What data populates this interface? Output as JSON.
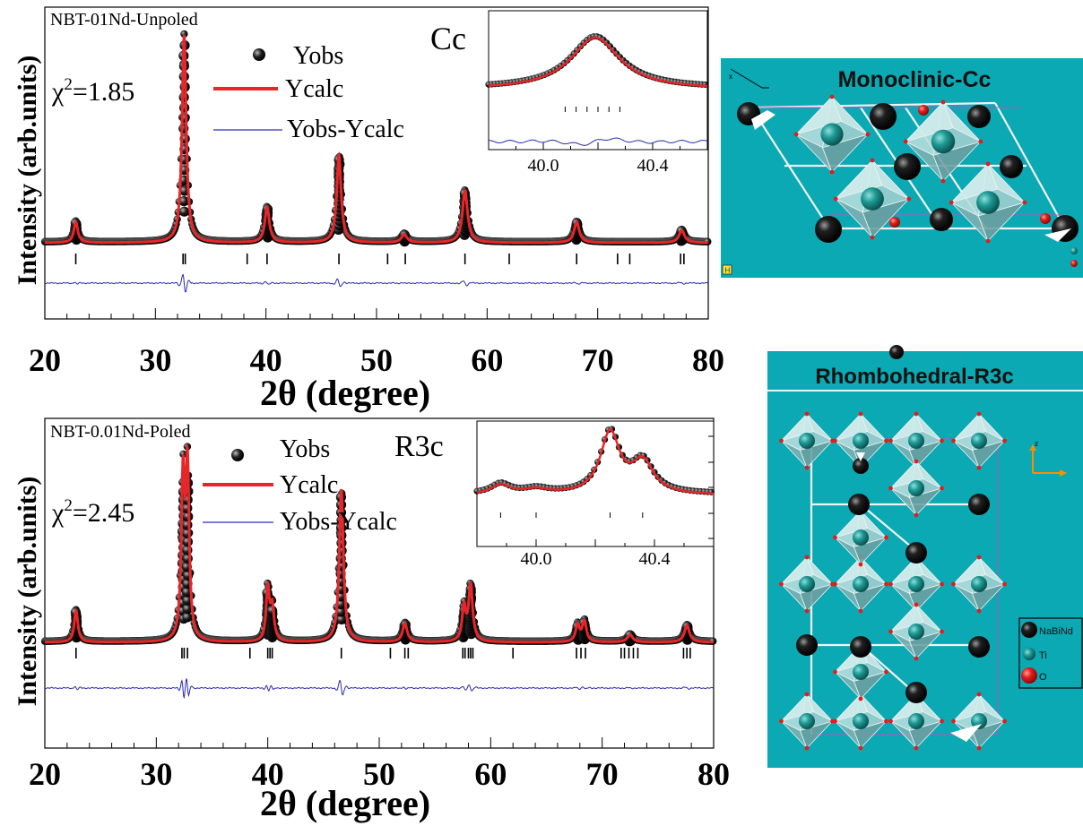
{
  "chart_data": [
    {
      "type": "line",
      "panel": "top",
      "sample_label": "NBT-01Nd-Unpoled",
      "space_group": "Cc",
      "chi2_prefix": "χ",
      "chi2_exp": "2",
      "chi2_value": "=1.85",
      "xlabel": "2θ (degree)",
      "ylabel": "Intensity (arb.units)",
      "xlim": [
        20,
        80
      ],
      "xticks": [
        20,
        30,
        40,
        50,
        60,
        70,
        80
      ],
      "legend_position": "top-center",
      "legend": {
        "obs": "Yobs",
        "calc": "Ycalc",
        "diff": "Yobs-Ycalc"
      },
      "colors": {
        "obs": "#000000",
        "calc": "#e8262a",
        "diff": "#2b2bb0",
        "bragg": "#000000"
      },
      "peaks": [
        {
          "x": 22.8,
          "h": 0.1,
          "w": 0.22
        },
        {
          "x": 32.6,
          "h": 1.0,
          "w": 0.22
        },
        {
          "x": 40.1,
          "h": 0.17,
          "w": 0.25
        },
        {
          "x": 46.6,
          "h": 0.42,
          "w": 0.24
        },
        {
          "x": 52.5,
          "h": 0.04,
          "w": 0.3
        },
        {
          "x": 58.0,
          "h": 0.25,
          "w": 0.28
        },
        {
          "x": 68.1,
          "h": 0.1,
          "w": 0.28
        },
        {
          "x": 77.6,
          "h": 0.06,
          "w": 0.3
        }
      ],
      "bragg_positions": [
        22.8,
        32.5,
        32.7,
        38.3,
        40.1,
        46.6,
        51.0,
        52.6,
        58.0,
        62.0,
        68.1,
        71.8,
        72.9,
        77.5,
        77.8
      ],
      "inset": {
        "xlim": [
          39.8,
          40.6
        ],
        "xticks": [
          40.0,
          40.4
        ],
        "peaks": [
          {
            "x": 40.19,
            "h": 1.0,
            "w": 0.11
          }
        ],
        "bragg_positions": [
          40.08,
          40.12,
          40.16,
          40.2,
          40.24,
          40.28
        ]
      }
    },
    {
      "type": "line",
      "panel": "bottom",
      "sample_label": "NBT-0.01Nd-Poled",
      "space_group": "R3c",
      "chi2_prefix": "χ",
      "chi2_exp": "2",
      "chi2_value": "=2.45",
      "xlabel": "2θ (degree)",
      "ylabel": "Intensity (arb.units)",
      "xlim": [
        20,
        80
      ],
      "xticks": [
        20,
        30,
        40,
        50,
        60,
        70,
        80
      ],
      "legend_position": "top-center",
      "legend": {
        "obs": "Yobs",
        "calc": "Ycalc",
        "diff": "Yobs-Ycalc"
      },
      "colors": {
        "obs": "#000000",
        "calc": "#e8262a",
        "diff": "#2b2bb0",
        "bragg": "#000000"
      },
      "peaks": [
        {
          "x": 22.8,
          "h": 0.17,
          "w": 0.2
        },
        {
          "x": 32.4,
          "h": 0.85,
          "w": 0.18
        },
        {
          "x": 32.8,
          "h": 0.9,
          "w": 0.18
        },
        {
          "x": 40.0,
          "h": 0.28,
          "w": 0.18
        },
        {
          "x": 40.4,
          "h": 0.18,
          "w": 0.2
        },
        {
          "x": 46.6,
          "h": 0.82,
          "w": 0.22
        },
        {
          "x": 52.3,
          "h": 0.1,
          "w": 0.25
        },
        {
          "x": 57.6,
          "h": 0.18,
          "w": 0.2
        },
        {
          "x": 58.2,
          "h": 0.3,
          "w": 0.22
        },
        {
          "x": 67.8,
          "h": 0.09,
          "w": 0.22
        },
        {
          "x": 68.4,
          "h": 0.11,
          "w": 0.22
        },
        {
          "x": 72.5,
          "h": 0.04,
          "w": 0.3
        },
        {
          "x": 77.6,
          "h": 0.09,
          "w": 0.28
        }
      ],
      "bragg_positions": [
        22.8,
        32.3,
        32.5,
        32.8,
        38.4,
        40.0,
        40.2,
        40.4,
        46.6,
        51.0,
        52.3,
        52.6,
        57.5,
        57.7,
        58.0,
        58.2,
        58.4,
        62.0,
        67.7,
        68.1,
        68.5,
        71.7,
        72.0,
        72.4,
        72.8,
        73.2,
        77.3,
        77.6,
        77.9
      ],
      "inset": {
        "xlim": [
          39.8,
          40.6
        ],
        "xticks": [
          40.0,
          40.4
        ],
        "peaks": [
          {
            "x": 39.88,
            "h": 0.1,
            "w": 0.04
          },
          {
            "x": 40.0,
            "h": 0.05,
            "w": 0.05
          },
          {
            "x": 40.25,
            "h": 0.62,
            "w": 0.04
          },
          {
            "x": 40.36,
            "h": 0.32,
            "w": 0.045
          }
        ],
        "bragg_positions": [
          39.88,
          40.0,
          40.25,
          40.36
        ]
      }
    }
  ],
  "structures": {
    "monoclinic": {
      "title": "Monoclinic-Cc",
      "axis_icon": "H"
    },
    "rhombohedral": {
      "title": "Rhombohedral-R3c"
    },
    "legend": [
      {
        "label": "NaBiNd",
        "color": "#000000"
      },
      {
        "label": "Ti",
        "color": "#1f9a96"
      },
      {
        "label": "O",
        "color": "#e51c1c"
      }
    ],
    "background_color": "#0aa9b3"
  }
}
